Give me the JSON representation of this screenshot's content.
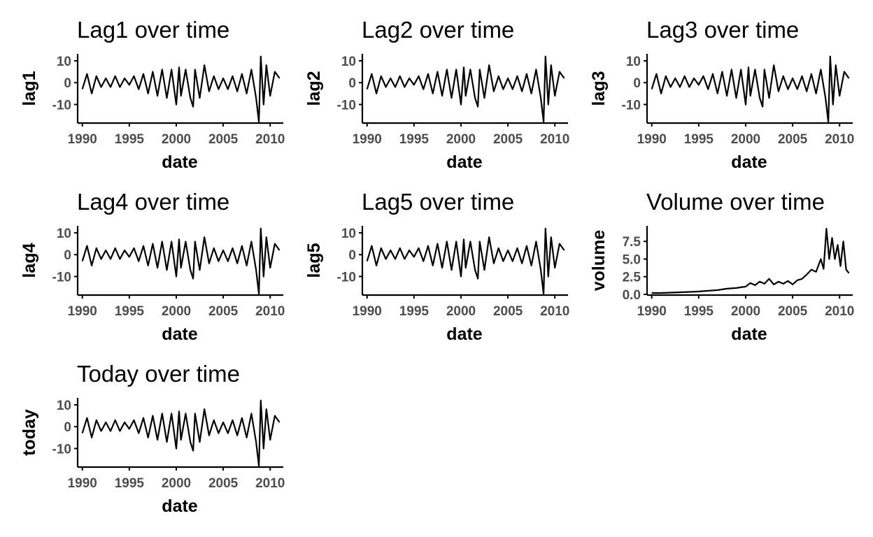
{
  "chart_data": [
    {
      "type": "line",
      "title": "Lag1 over time",
      "xlabel": "date",
      "ylabel": "lag1",
      "xlim": [
        1989.5,
        2011.4
      ],
      "ylim": [
        -18.5,
        13.2
      ],
      "xticks": [
        1990,
        1995,
        2000,
        2005,
        2010
      ],
      "xtick_labels": [
        "1990",
        "1995",
        "2000",
        "2005",
        "2010"
      ],
      "yticks": [
        10,
        0,
        -10
      ],
      "ytick_labels": [
        "10",
        "0",
        "-10"
      ],
      "series": [
        {
          "x": [
            1990.0,
            1990.5,
            1991.0,
            1991.5,
            1992.0,
            1992.5,
            1993.0,
            1993.5,
            1994.0,
            1994.5,
            1995.0,
            1995.5,
            1996.0,
            1996.5,
            1997.0,
            1997.5,
            1998.0,
            1998.5,
            1999.0,
            1999.5,
            2000.0,
            2000.3,
            2000.5,
            2001.0,
            2001.5,
            2001.8,
            2002.0,
            2002.5,
            2003.0,
            2003.5,
            2004.0,
            2004.5,
            2005.0,
            2005.5,
            2006.0,
            2006.5,
            2007.0,
            2007.5,
            2008.0,
            2008.5,
            2008.8,
            2009.0,
            2009.3,
            2009.6,
            2010.0,
            2010.5,
            2011.0
          ],
          "y": [
            -3,
            4,
            -5,
            3,
            -2,
            2,
            -2,
            3,
            -2,
            2,
            -1,
            3,
            -3,
            4,
            -5,
            5,
            -6,
            6,
            -7,
            6,
            -10,
            7,
            -6,
            6,
            -7,
            -11,
            6,
            -7,
            8,
            -4,
            3,
            -3,
            2,
            -3,
            3,
            -4,
            4,
            -5,
            6,
            -7,
            -18,
            12,
            -10,
            8,
            -6,
            5,
            2
          ]
        }
      ]
    },
    {
      "type": "line",
      "title": "Lag2 over time",
      "xlabel": "date",
      "ylabel": "lag2",
      "xlim": [
        1989.5,
        2011.4
      ],
      "ylim": [
        -18.5,
        13.2
      ],
      "xticks": [
        1990,
        1995,
        2000,
        2005,
        2010
      ],
      "xtick_labels": [
        "1990",
        "1995",
        "2000",
        "2005",
        "2010"
      ],
      "yticks": [
        10,
        0,
        -10
      ],
      "ytick_labels": [
        "10",
        "0",
        "-10"
      ],
      "series": [
        {
          "x": [
            1990.0,
            1990.5,
            1991.0,
            1991.5,
            1992.0,
            1992.5,
            1993.0,
            1993.5,
            1994.0,
            1994.5,
            1995.0,
            1995.5,
            1996.0,
            1996.5,
            1997.0,
            1997.5,
            1998.0,
            1998.5,
            1999.0,
            1999.5,
            2000.0,
            2000.3,
            2000.5,
            2001.0,
            2001.5,
            2001.8,
            2002.0,
            2002.5,
            2003.0,
            2003.5,
            2004.0,
            2004.5,
            2005.0,
            2005.5,
            2006.0,
            2006.5,
            2007.0,
            2007.5,
            2008.0,
            2008.5,
            2008.8,
            2009.0,
            2009.3,
            2009.6,
            2010.0,
            2010.5,
            2011.0
          ],
          "y": [
            -3,
            4,
            -5,
            3,
            -2,
            2,
            -2,
            3,
            -2,
            2,
            -1,
            3,
            -3,
            4,
            -5,
            5,
            -6,
            6,
            -7,
            6,
            -10,
            7,
            -6,
            6,
            -7,
            -11,
            6,
            -7,
            8,
            -4,
            3,
            -3,
            2,
            -3,
            3,
            -4,
            4,
            -5,
            6,
            -7,
            -18,
            12,
            -10,
            8,
            -6,
            5,
            2
          ]
        }
      ]
    },
    {
      "type": "line",
      "title": "Lag3 over time",
      "xlabel": "date",
      "ylabel": "lag3",
      "xlim": [
        1989.5,
        2011.4
      ],
      "ylim": [
        -18.5,
        13.2
      ],
      "xticks": [
        1990,
        1995,
        2000,
        2005,
        2010
      ],
      "xtick_labels": [
        "1990",
        "1995",
        "2000",
        "2005",
        "2010"
      ],
      "yticks": [
        10,
        0,
        -10
      ],
      "ytick_labels": [
        "10",
        "0",
        "-10"
      ],
      "series": [
        {
          "x": [
            1990.0,
            1990.5,
            1991.0,
            1991.5,
            1992.0,
            1992.5,
            1993.0,
            1993.5,
            1994.0,
            1994.5,
            1995.0,
            1995.5,
            1996.0,
            1996.5,
            1997.0,
            1997.5,
            1998.0,
            1998.5,
            1999.0,
            1999.5,
            2000.0,
            2000.3,
            2000.5,
            2001.0,
            2001.5,
            2001.8,
            2002.0,
            2002.5,
            2003.0,
            2003.5,
            2004.0,
            2004.5,
            2005.0,
            2005.5,
            2006.0,
            2006.5,
            2007.0,
            2007.5,
            2008.0,
            2008.5,
            2008.8,
            2009.0,
            2009.3,
            2009.6,
            2010.0,
            2010.5,
            2011.0
          ],
          "y": [
            -3,
            4,
            -5,
            3,
            -2,
            2,
            -2,
            3,
            -2,
            2,
            -1,
            3,
            -3,
            4,
            -5,
            5,
            -6,
            6,
            -7,
            6,
            -10,
            7,
            -6,
            6,
            -7,
            -11,
            6,
            -7,
            8,
            -4,
            3,
            -3,
            2,
            -3,
            3,
            -4,
            4,
            -5,
            6,
            -7,
            -18,
            12,
            -10,
            8,
            -6,
            5,
            2
          ]
        }
      ]
    },
    {
      "type": "line",
      "title": "Lag4 over time",
      "xlabel": "date",
      "ylabel": "lag4",
      "xlim": [
        1989.5,
        2011.4
      ],
      "ylim": [
        -18.5,
        13.2
      ],
      "xticks": [
        1990,
        1995,
        2000,
        2005,
        2010
      ],
      "xtick_labels": [
        "1990",
        "1995",
        "2000",
        "2005",
        "2010"
      ],
      "yticks": [
        10,
        0,
        -10
      ],
      "ytick_labels": [
        "10",
        "0",
        "-10"
      ],
      "series": [
        {
          "x": [
            1990.0,
            1990.5,
            1991.0,
            1991.5,
            1992.0,
            1992.5,
            1993.0,
            1993.5,
            1994.0,
            1994.5,
            1995.0,
            1995.5,
            1996.0,
            1996.5,
            1997.0,
            1997.5,
            1998.0,
            1998.5,
            1999.0,
            1999.5,
            2000.0,
            2000.3,
            2000.5,
            2001.0,
            2001.5,
            2001.8,
            2002.0,
            2002.5,
            2003.0,
            2003.5,
            2004.0,
            2004.5,
            2005.0,
            2005.5,
            2006.0,
            2006.5,
            2007.0,
            2007.5,
            2008.0,
            2008.5,
            2008.8,
            2009.0,
            2009.3,
            2009.6,
            2010.0,
            2010.5,
            2011.0
          ],
          "y": [
            -3,
            4,
            -5,
            3,
            -2,
            2,
            -2,
            3,
            -2,
            2,
            -1,
            3,
            -3,
            4,
            -5,
            5,
            -6,
            6,
            -7,
            6,
            -10,
            7,
            -6,
            6,
            -7,
            -11,
            6,
            -7,
            8,
            -4,
            3,
            -3,
            2,
            -3,
            3,
            -4,
            4,
            -5,
            6,
            -7,
            -18,
            12,
            -10,
            8,
            -6,
            5,
            2
          ]
        }
      ]
    },
    {
      "type": "line",
      "title": "Lag5 over time",
      "xlabel": "date",
      "ylabel": "lag5",
      "xlim": [
        1989.5,
        2011.4
      ],
      "ylim": [
        -18.5,
        13.2
      ],
      "xticks": [
        1990,
        1995,
        2000,
        2005,
        2010
      ],
      "xtick_labels": [
        "1990",
        "1995",
        "2000",
        "2005",
        "2010"
      ],
      "yticks": [
        10,
        0,
        -10
      ],
      "ytick_labels": [
        "10",
        "0",
        "-10"
      ],
      "series": [
        {
          "x": [
            1990.0,
            1990.5,
            1991.0,
            1991.5,
            1992.0,
            1992.5,
            1993.0,
            1993.5,
            1994.0,
            1994.5,
            1995.0,
            1995.5,
            1996.0,
            1996.5,
            1997.0,
            1997.5,
            1998.0,
            1998.5,
            1999.0,
            1999.5,
            2000.0,
            2000.3,
            2000.5,
            2001.0,
            2001.5,
            2001.8,
            2002.0,
            2002.5,
            2003.0,
            2003.5,
            2004.0,
            2004.5,
            2005.0,
            2005.5,
            2006.0,
            2006.5,
            2007.0,
            2007.5,
            2008.0,
            2008.5,
            2008.8,
            2009.0,
            2009.3,
            2009.6,
            2010.0,
            2010.5,
            2011.0
          ],
          "y": [
            -3,
            4,
            -5,
            3,
            -2,
            2,
            -2,
            3,
            -2,
            2,
            -1,
            3,
            -3,
            4,
            -5,
            5,
            -6,
            6,
            -7,
            6,
            -10,
            7,
            -6,
            6,
            -7,
            -11,
            6,
            -7,
            8,
            -4,
            3,
            -3,
            2,
            -3,
            3,
            -4,
            4,
            -5,
            6,
            -7,
            -18,
            12,
            -10,
            8,
            -6,
            5,
            2
          ]
        }
      ]
    },
    {
      "type": "line",
      "title": "Volume over time",
      "xlabel": "date",
      "ylabel": "volume",
      "xlim": [
        1989.5,
        2011.4
      ],
      "ylim": [
        -0.1,
        9.7
      ],
      "xticks": [
        1990,
        1995,
        2000,
        2005,
        2010
      ],
      "xtick_labels": [
        "1990",
        "1995",
        "2000",
        "2005",
        "2010"
      ],
      "yticks": [
        7.5,
        5.0,
        2.5,
        0.0
      ],
      "ytick_labels": [
        "7.5",
        "5.0",
        "2.5",
        "0.0"
      ],
      "series": [
        {
          "x": [
            1990.0,
            1991.0,
            1992.0,
            1993.0,
            1994.0,
            1995.0,
            1996.0,
            1997.0,
            1998.0,
            1999.0,
            2000.0,
            2000.5,
            2001.0,
            2001.5,
            2002.0,
            2002.5,
            2003.0,
            2003.5,
            2004.0,
            2004.5,
            2005.0,
            2005.5,
            2006.0,
            2006.5,
            2007.0,
            2007.5,
            2008.0,
            2008.3,
            2008.6,
            2008.9,
            2009.2,
            2009.5,
            2009.8,
            2010.1,
            2010.4,
            2010.7,
            2011.0
          ],
          "y": [
            0.2,
            0.2,
            0.25,
            0.3,
            0.35,
            0.4,
            0.5,
            0.6,
            0.8,
            0.9,
            1.1,
            1.6,
            1.3,
            1.8,
            1.5,
            2.2,
            1.4,
            1.8,
            1.5,
            1.9,
            1.4,
            2.0,
            2.2,
            2.8,
            3.5,
            3.2,
            5.0,
            3.6,
            9.3,
            5.0,
            8.0,
            5.0,
            7.0,
            4.0,
            7.5,
            3.5,
            3.0
          ]
        }
      ]
    },
    {
      "type": "line",
      "title": "Today over time",
      "xlabel": "date",
      "ylabel": "today",
      "xlim": [
        1989.5,
        2011.4
      ],
      "ylim": [
        -18.5,
        13.2
      ],
      "xticks": [
        1990,
        1995,
        2000,
        2005,
        2010
      ],
      "xtick_labels": [
        "1990",
        "1995",
        "2000",
        "2005",
        "2010"
      ],
      "yticks": [
        10,
        0,
        -10
      ],
      "ytick_labels": [
        "10",
        "0",
        "-10"
      ],
      "series": [
        {
          "x": [
            1990.0,
            1990.5,
            1991.0,
            1991.5,
            1992.0,
            1992.5,
            1993.0,
            1993.5,
            1994.0,
            1994.5,
            1995.0,
            1995.5,
            1996.0,
            1996.5,
            1997.0,
            1997.5,
            1998.0,
            1998.5,
            1999.0,
            1999.5,
            2000.0,
            2000.3,
            2000.5,
            2001.0,
            2001.5,
            2001.8,
            2002.0,
            2002.5,
            2003.0,
            2003.5,
            2004.0,
            2004.5,
            2005.0,
            2005.5,
            2006.0,
            2006.5,
            2007.0,
            2007.5,
            2008.0,
            2008.5,
            2008.8,
            2009.0,
            2009.3,
            2009.6,
            2010.0,
            2010.5,
            2011.0
          ],
          "y": [
            -3,
            4,
            -5,
            3,
            -2,
            2,
            -2,
            3,
            -2,
            2,
            -1,
            3,
            -3,
            4,
            -5,
            5,
            -6,
            6,
            -7,
            6,
            -10,
            7,
            -6,
            6,
            -7,
            -11,
            6,
            -7,
            8,
            -4,
            3,
            -3,
            2,
            -3,
            3,
            -4,
            4,
            -5,
            6,
            -7,
            -18,
            12,
            -10,
            8,
            -6,
            5,
            2
          ]
        }
      ]
    }
  ]
}
